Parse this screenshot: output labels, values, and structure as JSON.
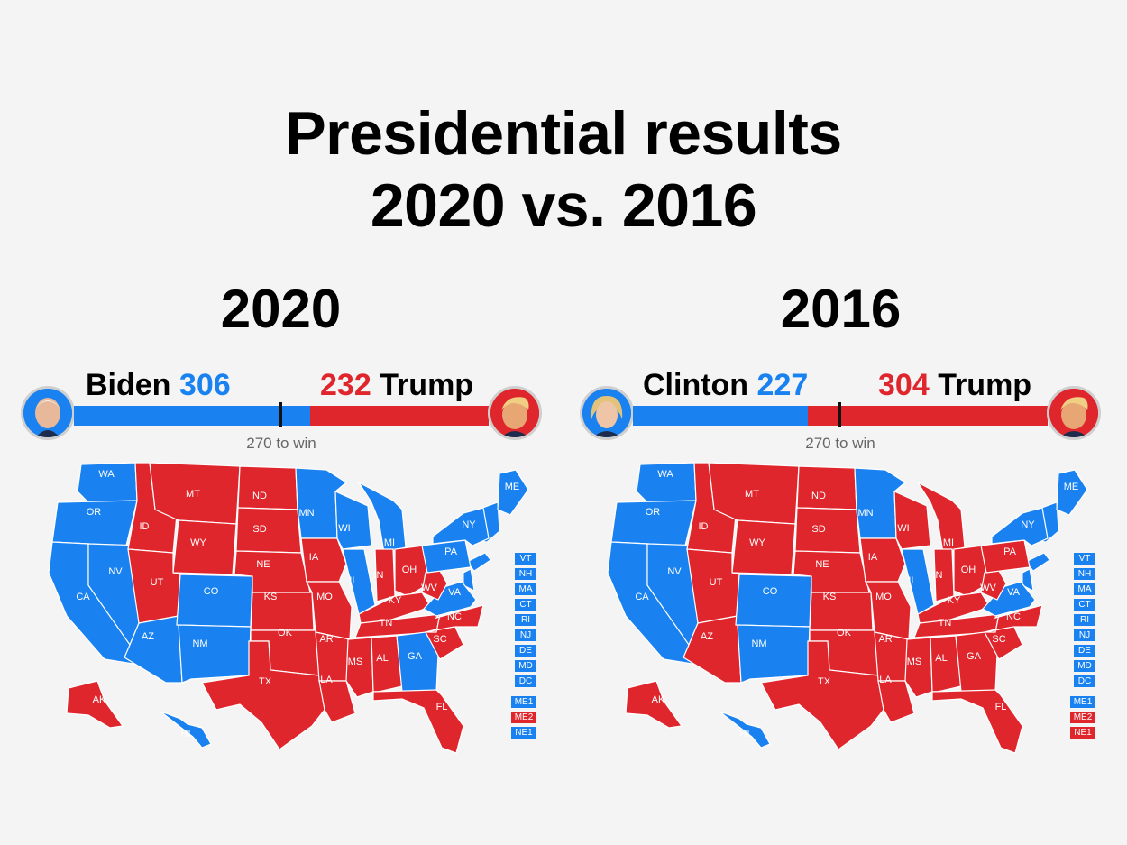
{
  "title_line1": "Presidential results",
  "title_line2": "2020 vs. 2016",
  "colors": {
    "dem": "#1a82f0",
    "rep": "#e0262d"
  },
  "panels": [
    {
      "year": "2020",
      "dem_name": "Biden",
      "dem_votes": "306",
      "rep_votes": "232",
      "rep_name": "Trump",
      "win_label": "270 to win",
      "dem_share": 0.5688,
      "dem_avatar_icon": "biden-portrait-icon",
      "rep_avatar_icon": "trump-portrait-icon",
      "states": {
        "WA": "dem",
        "OR": "dem",
        "CA": "dem",
        "NV": "dem",
        "ID": "rep",
        "MT": "rep",
        "WY": "rep",
        "UT": "rep",
        "AZ": "dem",
        "CO": "dem",
        "NM": "dem",
        "ND": "rep",
        "SD": "rep",
        "NE": "rep",
        "KS": "rep",
        "OK": "rep",
        "TX": "rep",
        "MN": "dem",
        "IA": "rep",
        "MO": "rep",
        "AR": "rep",
        "LA": "rep",
        "WI": "dem",
        "IL": "dem",
        "MI": "dem",
        "IN": "rep",
        "OH": "rep",
        "KY": "rep",
        "TN": "rep",
        "MS": "rep",
        "AL": "rep",
        "GA": "dem",
        "FL": "rep",
        "SC": "rep",
        "NC": "rep",
        "VA": "dem",
        "WV": "rep",
        "PA": "dem",
        "NY": "dem",
        "ME": "dem",
        "AK": "rep",
        "HI": "dem"
      },
      "small_states": [
        {
          "code": "VT",
          "party": "dem"
        },
        {
          "code": "NH",
          "party": "dem"
        },
        {
          "code": "MA",
          "party": "dem"
        },
        {
          "code": "CT",
          "party": "dem"
        },
        {
          "code": "RI",
          "party": "dem"
        },
        {
          "code": "NJ",
          "party": "dem"
        },
        {
          "code": "DE",
          "party": "dem"
        },
        {
          "code": "MD",
          "party": "dem"
        },
        {
          "code": "DC",
          "party": "dem"
        }
      ],
      "districts": [
        {
          "code": "ME1",
          "party": "dem"
        },
        {
          "code": "ME2",
          "party": "rep"
        },
        {
          "code": "NE1",
          "party": "dem"
        }
      ]
    },
    {
      "year": "2016",
      "dem_name": "Clinton",
      "dem_votes": "227",
      "rep_votes": "304",
      "rep_name": "Trump",
      "win_label": "270 to win",
      "dem_share": 0.4219,
      "dem_avatar_icon": "clinton-portrait-icon",
      "rep_avatar_icon": "trump-portrait-icon",
      "states": {
        "WA": "dem",
        "OR": "dem",
        "CA": "dem",
        "NV": "dem",
        "ID": "rep",
        "MT": "rep",
        "WY": "rep",
        "UT": "rep",
        "AZ": "rep",
        "CO": "dem",
        "NM": "dem",
        "ND": "rep",
        "SD": "rep",
        "NE": "rep",
        "KS": "rep",
        "OK": "rep",
        "TX": "rep",
        "MN": "dem",
        "IA": "rep",
        "MO": "rep",
        "AR": "rep",
        "LA": "rep",
        "WI": "rep",
        "IL": "dem",
        "MI": "rep",
        "IN": "rep",
        "OH": "rep",
        "KY": "rep",
        "TN": "rep",
        "MS": "rep",
        "AL": "rep",
        "GA": "rep",
        "FL": "rep",
        "SC": "rep",
        "NC": "rep",
        "VA": "dem",
        "WV": "rep",
        "PA": "rep",
        "NY": "dem",
        "ME": "dem",
        "AK": "rep",
        "HI": "dem"
      },
      "small_states": [
        {
          "code": "VT",
          "party": "dem"
        },
        {
          "code": "NH",
          "party": "dem"
        },
        {
          "code": "MA",
          "party": "dem"
        },
        {
          "code": "CT",
          "party": "dem"
        },
        {
          "code": "RI",
          "party": "dem"
        },
        {
          "code": "NJ",
          "party": "dem"
        },
        {
          "code": "DE",
          "party": "dem"
        },
        {
          "code": "MD",
          "party": "dem"
        },
        {
          "code": "DC",
          "party": "dem"
        }
      ],
      "districts": [
        {
          "code": "ME1",
          "party": "dem"
        },
        {
          "code": "ME2",
          "party": "rep"
        },
        {
          "code": "NE1",
          "party": "rep"
        }
      ]
    }
  ]
}
